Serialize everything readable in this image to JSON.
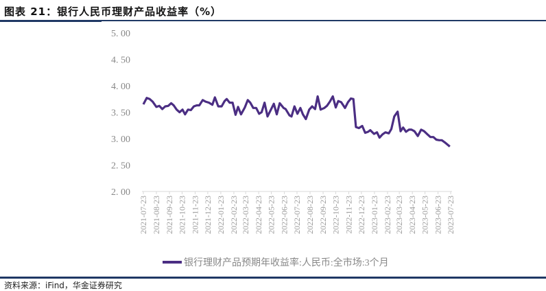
{
  "title": "图表 21：银行人民币理财产品收益率（%）",
  "source": "资料来源：iFind，华金证券研究",
  "chart_data": {
    "type": "line",
    "title": "",
    "xlabel": "",
    "ylabel": "",
    "ylim": [
      2.0,
      5.0
    ],
    "xlim": [
      "2021-07-23",
      "2023-07-23"
    ],
    "grid": false,
    "legend_position": "bottom",
    "y_ticks": [
      "2.00",
      "2.50",
      "3.00",
      "3.50",
      "4.00",
      "4.50",
      "5.00"
    ],
    "x_ticks": [
      "2021-07-23",
      "2021-08-23",
      "2021-09-23",
      "2021-10-23",
      "2021-11-23",
      "2021-12-23",
      "2022-01-23",
      "2022-02-23",
      "2022-03-23",
      "2022-04-23",
      "2022-05-23",
      "2022-06-23",
      "2022-07-23",
      "2022-08-23",
      "2022-09-23",
      "2022-10-23",
      "2022-11-23",
      "2022-12-23",
      "2023-01-23",
      "2023-02-23",
      "2023-03-23",
      "2023-04-23",
      "2023-05-23",
      "2023-06-23",
      "2023-07-23"
    ],
    "series": [
      {
        "name": "银行理财产品预期年收益率:人民币:全市场:3个月",
        "color": "#4b2e83",
        "x": [
          "2021-07-23",
          "2021-07-31",
          "2021-08-07",
          "2021-08-14",
          "2021-08-23",
          "2021-08-30",
          "2021-09-06",
          "2021-09-13",
          "2021-09-20",
          "2021-09-27",
          "2021-10-03",
          "2021-10-10",
          "2021-10-17",
          "2021-10-24",
          "2021-10-30",
          "2021-11-06",
          "2021-11-13",
          "2021-11-20",
          "2021-11-27",
          "2021-12-03",
          "2021-12-11",
          "2021-12-18",
          "2021-12-26",
          "2022-01-03",
          "2022-01-09",
          "2022-01-17",
          "2022-01-25",
          "2022-02-01",
          "2022-02-06",
          "2022-02-13",
          "2022-02-20",
          "2022-02-27",
          "2022-03-05",
          "2022-03-12",
          "2022-03-21",
          "2022-03-28",
          "2022-04-03",
          "2022-04-10",
          "2022-04-17",
          "2022-04-24",
          "2022-04-30",
          "2022-05-07",
          "2022-05-14",
          "2022-05-22",
          "2022-05-29",
          "2022-06-05",
          "2022-06-12",
          "2022-06-21",
          "2022-06-26",
          "2022-07-05",
          "2022-07-10",
          "2022-07-17",
          "2022-07-24",
          "2022-07-31",
          "2022-08-06",
          "2022-08-13",
          "2022-08-21",
          "2022-08-28",
          "2022-09-04",
          "2022-09-10",
          "2022-09-17",
          "2022-09-26",
          "2022-10-02",
          "2022-10-09",
          "2022-10-16",
          "2022-10-23",
          "2022-10-29",
          "2022-11-05",
          "2022-11-14",
          "2022-11-21",
          "2022-11-28",
          "2022-12-04",
          "2022-12-10",
          "2022-12-17",
          "2022-12-25",
          "2023-01-01",
          "2023-01-08",
          "2023-01-13",
          "2023-01-22",
          "2023-01-29",
          "2023-02-04",
          "2023-02-11",
          "2023-02-18",
          "2023-02-26",
          "2023-03-04",
          "2023-03-11",
          "2023-03-19",
          "2023-03-26",
          "2023-04-01",
          "2023-04-08",
          "2023-04-15",
          "2023-04-21",
          "2023-04-28",
          "2023-05-06",
          "2023-05-14",
          "2023-05-21",
          "2023-05-29",
          "2023-06-05",
          "2023-06-12",
          "2023-06-19",
          "2023-06-26",
          "2023-07-02",
          "2023-07-09",
          "2023-07-21"
        ],
        "values": [
          3.65,
          3.77,
          3.75,
          3.7,
          3.6,
          3.62,
          3.56,
          3.61,
          3.62,
          3.67,
          3.63,
          3.55,
          3.5,
          3.55,
          3.46,
          3.55,
          3.54,
          3.61,
          3.63,
          3.63,
          3.73,
          3.7,
          3.68,
          3.64,
          3.78,
          3.61,
          3.61,
          3.71,
          3.75,
          3.68,
          3.68,
          3.45,
          3.6,
          3.46,
          3.59,
          3.73,
          3.68,
          3.58,
          3.58,
          3.47,
          3.5,
          3.68,
          3.42,
          3.55,
          3.66,
          3.46,
          3.67,
          3.58,
          3.56,
          3.44,
          3.42,
          3.61,
          3.47,
          3.58,
          3.46,
          3.37,
          3.55,
          3.61,
          3.56,
          3.8,
          3.55,
          3.58,
          3.62,
          3.7,
          3.8,
          3.59,
          3.71,
          3.69,
          3.58,
          3.69,
          3.76,
          3.75,
          3.22,
          3.2,
          3.24,
          3.11,
          3.13,
          3.16,
          3.09,
          3.12,
          3.02,
          3.08,
          3.12,
          3.1,
          3.18,
          3.42,
          3.51,
          3.14,
          3.21,
          3.13,
          3.17,
          3.17,
          3.14,
          3.05,
          3.17,
          3.14,
          3.08,
          3.03,
          3.03,
          2.98,
          2.97,
          2.97,
          2.93,
          2.85
        ]
      }
    ]
  }
}
